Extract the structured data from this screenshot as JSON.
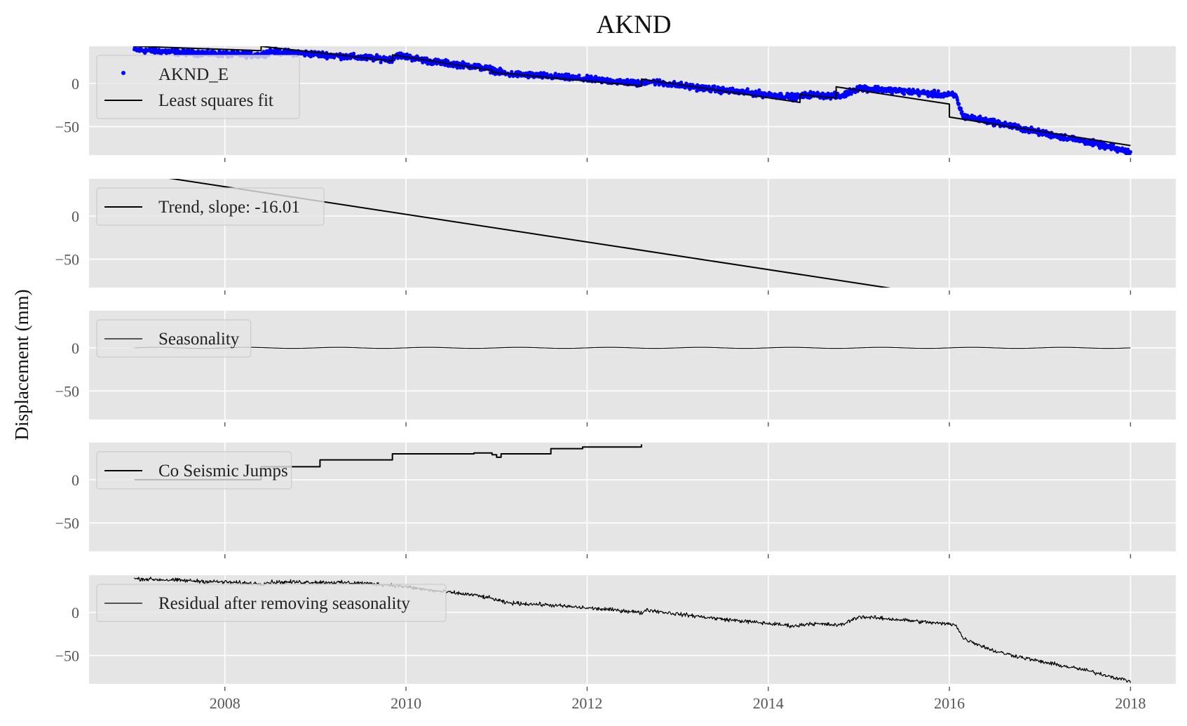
{
  "chart_data": {
    "type": "line",
    "title": "AKND",
    "ylabel": "Displacement (mm)",
    "xlabel": "",
    "xlim": [
      2006.5,
      2018.5
    ],
    "ylim": [
      -83,
      43
    ],
    "x_ticks": [
      2008,
      2010,
      2012,
      2014,
      2016,
      2018
    ],
    "y_ticks": [
      0,
      -50
    ],
    "grid": true,
    "legend_placement": "upper left",
    "colors": {
      "axes_bg": "#e5e5e5",
      "grid": "#ffffff",
      "data": "#0000ff",
      "line": "#000000",
      "tick_label": "#555555"
    },
    "panels": [
      {
        "legend": [
          "AKND_E",
          "Least squares fit"
        ],
        "series": [
          {
            "name": "AKND_E",
            "type": "scatter",
            "x": [
              2007.0,
              2007.5,
              2008.0,
              2008.4,
              2008.5,
              2009.0,
              2009.5,
              2009.85,
              2009.9,
              2010.3,
              2010.75,
              2010.95,
              2011.1,
              2011.5,
              2012.0,
              2012.5,
              2012.6,
              2012.65,
              2013.0,
              2013.5,
              2014.0,
              2014.3,
              2014.45,
              2014.8,
              2015.0,
              2015.5,
              2015.9,
              2016.07,
              2016.15,
              2016.5,
              2017.0,
              2017.5,
              2018.0
            ],
            "y": [
              39,
              36,
              34,
              33,
              37,
              34,
              30,
              28,
              33,
              25,
              20,
              16,
              11,
              9,
              5,
              1,
              -1,
              3,
              -2,
              -8,
              -13,
              -16,
              -13,
              -15,
              -5,
              -9,
              -13,
              -14,
              -38,
              -45,
              -57,
              -67,
              -80
            ],
            "noise": 2.4,
            "markers_per_year": 180
          },
          {
            "name": "Least squares fit",
            "type": "step-line",
            "x": [
              2007.0,
              2008.4,
              2008.4,
              2009.85,
              2009.85,
              2010.95,
              2010.95,
              2012.6,
              2012.6,
              2014.35,
              2014.35,
              2014.75,
              2014.75,
              2016.0,
              2016.0,
              2018.0
            ],
            "y": [
              43,
              38,
              43,
              26,
              33,
              15,
              13,
              -3,
              5,
              -22,
              -13,
              -17,
              -4,
              -24,
              -39,
              -72
            ]
          }
        ]
      },
      {
        "legend": [
          "Trend, slope: -16.01"
        ],
        "series": [
          {
            "name": "Trend, slope: -16.01",
            "type": "line",
            "x": [
              2007.0,
              2018.0
            ],
            "y": [
              49.9,
              -126.2
            ]
          }
        ]
      },
      {
        "legend": [
          "Seasonality"
        ],
        "series": [
          {
            "name": "Seasonality",
            "type": "sine",
            "x_start": 2007.0,
            "x_end": 2018.0,
            "amplitude": 0.6,
            "period_years": 1.0
          }
        ]
      },
      {
        "legend": [
          "Co Seismic Jumps"
        ],
        "series": [
          {
            "name": "Co Seismic Jumps",
            "type": "step-line",
            "x": [
              2007.0,
              2008.4,
              2008.4,
              2009.05,
              2009.05,
              2009.85,
              2009.85,
              2010.75,
              2010.75,
              2010.95,
              2010.95,
              2011.0,
              2011.0,
              2011.05,
              2011.05,
              2011.6,
              2011.6,
              2011.95,
              2011.95,
              2012.6,
              2012.6
            ],
            "y": [
              0,
              0,
              15,
              15,
              23,
              23,
              30,
              30,
              31,
              31,
              29,
              29,
              26,
              26,
              30,
              30,
              36,
              36,
              38,
              38,
              41
            ]
          }
        ]
      },
      {
        "legend": [
          "Residual after removing seasonality"
        ],
        "series": [
          {
            "name": "Residual after removing seasonality",
            "type": "line",
            "x": [
              2007.0,
              2007.5,
              2008.0,
              2008.4,
              2008.5,
              2009.0,
              2009.5,
              2009.9,
              2010.3,
              2010.75,
              2010.95,
              2011.1,
              2011.5,
              2012.0,
              2012.5,
              2012.6,
              2012.65,
              2013.0,
              2013.5,
              2014.0,
              2014.3,
              2014.45,
              2014.8,
              2015.0,
              2015.5,
              2015.9,
              2016.07,
              2016.15,
              2016.5,
              2017.0,
              2017.5,
              2018.0
            ],
            "y": [
              39,
              37,
              35,
              33,
              35,
              35,
              34,
              31,
              25,
              20,
              16,
              11,
              9,
              5,
              1,
              -1,
              3,
              -2,
              -8,
              -13,
              -16,
              -13,
              -15,
              -5,
              -9,
              -13,
              -14,
              -30,
              -45,
              -57,
              -67,
              -80
            ],
            "noise": 1.6
          }
        ]
      }
    ]
  }
}
